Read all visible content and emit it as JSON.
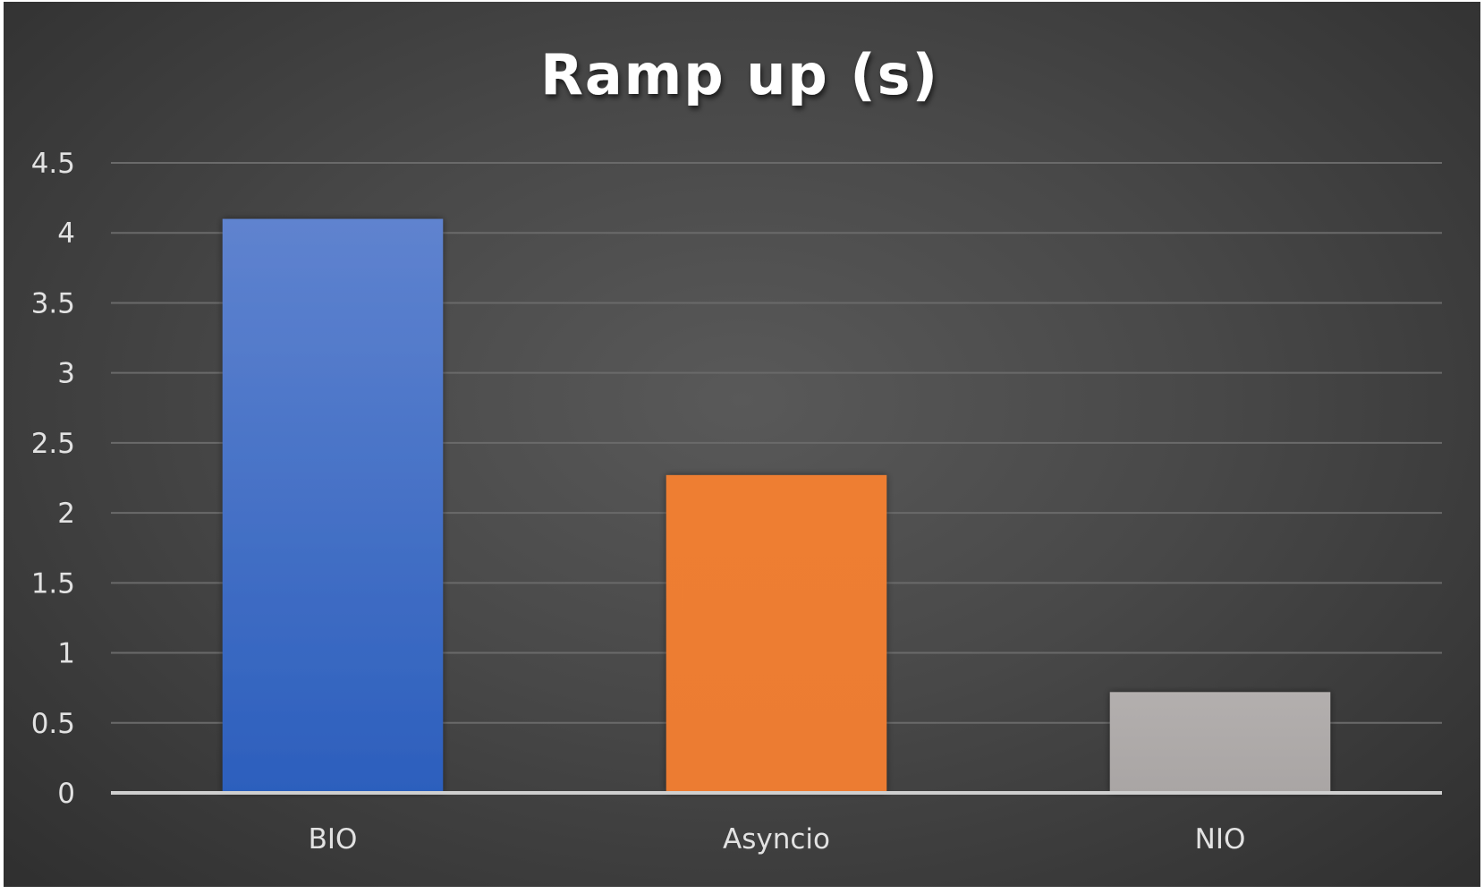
{
  "chart_data": {
    "type": "bar",
    "title": "Ramp up (s)",
    "categories": [
      "BIO",
      "Asyncio",
      "NIO"
    ],
    "values": [
      4.1,
      2.27,
      0.72
    ],
    "ylim": [
      0,
      4.5
    ],
    "yticks": [
      "0",
      "0.5",
      "1",
      "1.5",
      "2",
      "2.5",
      "3",
      "3.5",
      "4",
      "4.5"
    ],
    "ytick_values": [
      0,
      0.5,
      1,
      1.5,
      2,
      2.5,
      3,
      3.5,
      4,
      4.5
    ],
    "grid": true,
    "legend": "none",
    "colors": [
      "#4472C4",
      "#ED7D31",
      "#A5A5A5"
    ],
    "background": "#474747"
  }
}
